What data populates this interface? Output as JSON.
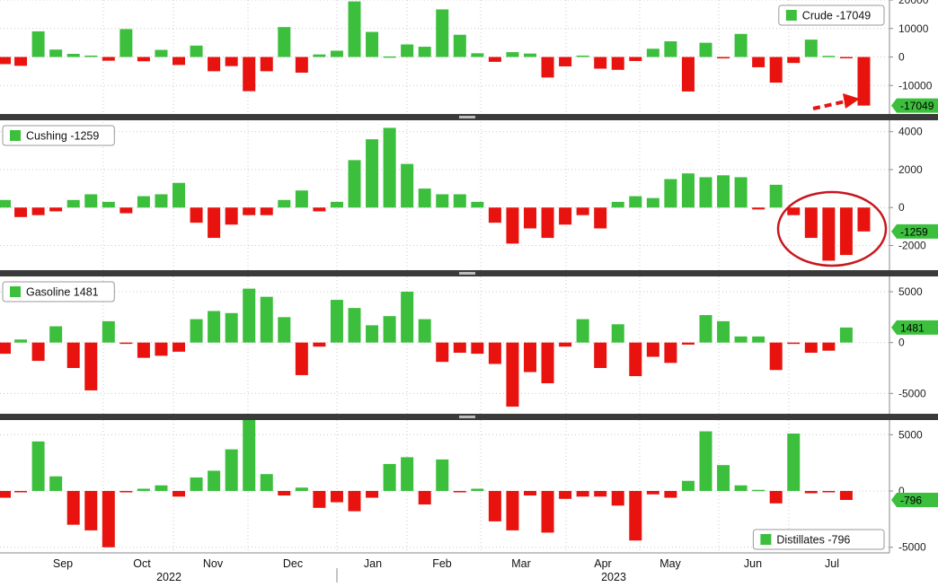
{
  "chart_data": [
    {
      "type": "bar",
      "legend": {
        "label": "Crude",
        "value": "-17049"
      },
      "last_value_label": "-17049",
      "ylim": [
        -20000,
        20000
      ],
      "ticks": [
        20000,
        10000,
        0,
        -10000
      ],
      "tick_labels": [
        "20000",
        "10000",
        "0",
        "-10000"
      ],
      "positive_color": "#3cbf3c",
      "negative_color": "#e8130f",
      "values": [
        -2500,
        -3100,
        9000,
        2600,
        1100,
        500,
        -1300,
        9800,
        -1500,
        2500,
        -2800,
        4000,
        -5000,
        -3200,
        -12000,
        -5000,
        10500,
        -5500,
        900,
        2200,
        19500,
        8800,
        200,
        4400,
        3600,
        16700,
        7800,
        1300,
        -1700,
        1700,
        1200,
        -7200,
        -3300,
        500,
        -4100,
        -4500,
        -1400,
        2900,
        5500,
        -12100,
        5000,
        -500,
        8100,
        -3600,
        -9000,
        -2100,
        6100,
        400,
        -400,
        -17049
      ]
    },
    {
      "type": "bar",
      "legend": {
        "label": "Cushing",
        "value": "-1259"
      },
      "last_value_label": "-1259",
      "ylim": [
        -3300,
        4600
      ],
      "ticks": [
        4000,
        2000,
        0,
        -2000
      ],
      "tick_labels": [
        "4000",
        "2000",
        "0",
        "-2000"
      ],
      "positive_color": "#3cbf3c",
      "negative_color": "#e8130f",
      "values": [
        400,
        -500,
        -400,
        -200,
        400,
        700,
        300,
        -300,
        600,
        700,
        1300,
        -800,
        -1600,
        -900,
        -400,
        -400,
        400,
        900,
        -200,
        300,
        2500,
        3600,
        4200,
        2300,
        1000,
        700,
        700,
        300,
        -800,
        -1900,
        -1100,
        -1600,
        -900,
        -400,
        -1100,
        300,
        600,
        500,
        1500,
        1800,
        1600,
        1700,
        1600,
        -100,
        1200,
        -400,
        -1600,
        -2800,
        -2500,
        -1259
      ]
    },
    {
      "type": "bar",
      "legend": {
        "label": "Gasoline",
        "value": "1481"
      },
      "last_value_label": "1481",
      "ylim": [
        -7000,
        6500
      ],
      "ticks": [
        5000,
        0,
        -5000
      ],
      "tick_labels": [
        "5000",
        "0",
        "-5000"
      ],
      "positive_color": "#3cbf3c",
      "negative_color": "#e8130f",
      "values": [
        -1100,
        300,
        -1800,
        1600,
        -2500,
        -4700,
        2100,
        -100,
        -1500,
        -1300,
        -900,
        2300,
        3100,
        2900,
        5300,
        4500,
        2500,
        -3200,
        -400,
        4200,
        3400,
        1700,
        2600,
        5000,
        2300,
        -1900,
        -1000,
        -1100,
        -2100,
        -6300,
        -2900,
        -4000,
        -400,
        2300,
        -2500,
        1800,
        -3300,
        -1400,
        -2000,
        -200,
        2700,
        2100,
        600,
        600,
        -2700,
        -100,
        -1000,
        -800,
        1481
      ]
    },
    {
      "type": "bar",
      "legend": {
        "label": "Distillates",
        "value": "-796"
      },
      "last_value_label": "-796",
      "ylim": [
        -5500,
        6300
      ],
      "ticks": [
        5000,
        0,
        -5000
      ],
      "tick_labels": [
        "5000",
        "0",
        "-5000"
      ],
      "positive_color": "#3cbf3c",
      "negative_color": "#e8130f",
      "values": [
        -600,
        -100,
        4400,
        1300,
        -3000,
        -3500,
        -5000,
        -100,
        200,
        500,
        -500,
        1200,
        1800,
        3700,
        6400,
        1500,
        -400,
        300,
        -1500,
        -1000,
        -1800,
        -600,
        2400,
        3000,
        -1200,
        2800,
        -100,
        200,
        -2700,
        -3500,
        -400,
        -3700,
        -700,
        -500,
        -500,
        -1300,
        -4400,
        -300,
        -600,
        900,
        5300,
        2300,
        500,
        100,
        -1100,
        5100,
        -200,
        -100,
        -796
      ]
    }
  ],
  "x_axis": {
    "months": [
      "Sep",
      "Oct",
      "Nov",
      "Dec",
      "Jan",
      "Feb",
      "Mar",
      "Apr",
      "May",
      "Jun",
      "Jul"
    ],
    "years": [
      "2022",
      "2023"
    ]
  },
  "annotations": {
    "arrow_color": "#e8130f",
    "circle_color": "#c8171e"
  }
}
